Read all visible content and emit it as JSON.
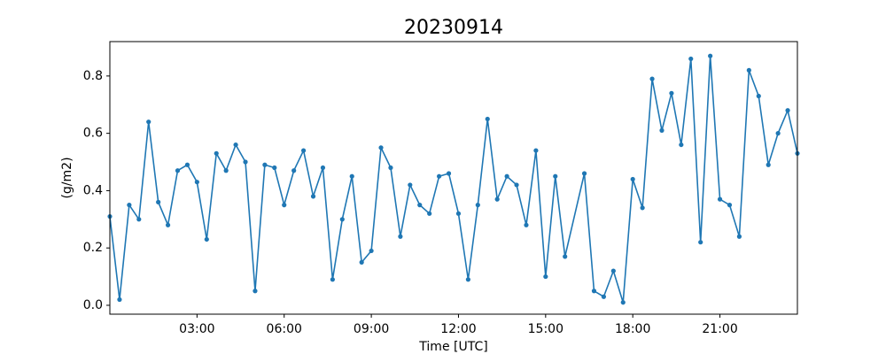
{
  "chart_data": {
    "type": "line",
    "title": "20230914",
    "x_label": "Time [UTC]",
    "y_label": "(g/m2)",
    "x": [
      0,
      20,
      40,
      60,
      80,
      100,
      120,
      140,
      160,
      180,
      200,
      220,
      240,
      260,
      280,
      300,
      320,
      340,
      360,
      380,
      400,
      420,
      440,
      460,
      480,
      500,
      520,
      540,
      560,
      580,
      600,
      620,
      640,
      660,
      680,
      700,
      720,
      740,
      760,
      780,
      800,
      820,
      840,
      860,
      880,
      900,
      920,
      940,
      980,
      1000,
      1020,
      1040,
      1060,
      1080,
      1100,
      1120,
      1140,
      1160,
      1180,
      1200,
      1220,
      1240,
      1260,
      1280,
      1300,
      1320,
      1340,
      1360,
      1380,
      1400,
      1420
    ],
    "series": [
      {
        "color": "#1f77b4",
        "values": [
          0.31,
          0.02,
          0.35,
          0.3,
          0.64,
          0.36,
          0.28,
          0.47,
          0.49,
          0.43,
          0.23,
          0.53,
          0.47,
          0.56,
          0.5,
          0.05,
          0.49,
          0.48,
          0.35,
          0.47,
          0.54,
          0.38,
          0.48,
          0.09,
          0.3,
          0.45,
          0.15,
          0.19,
          0.55,
          0.48,
          0.24,
          0.42,
          0.35,
          0.32,
          0.45,
          0.46,
          0.32,
          0.09,
          0.35,
          0.65,
          0.37,
          0.45,
          0.42,
          0.28,
          0.54,
          0.1,
          0.45,
          0.17,
          0.46,
          0.05,
          0.03,
          0.12,
          0.01,
          0.44,
          0.34,
          0.79,
          0.61,
          0.74,
          0.56,
          0.86,
          0.22,
          0.87,
          0.37,
          0.35,
          0.24,
          0.82,
          0.73,
          0.49,
          0.6,
          0.68,
          0.53
        ]
      }
    ],
    "xlim": [
      0,
      1420
    ],
    "xticks": [
      {
        "value": 180,
        "label": "03:00"
      },
      {
        "value": 360,
        "label": "06:00"
      },
      {
        "value": 540,
        "label": "09:00"
      },
      {
        "value": 720,
        "label": "12:00"
      },
      {
        "value": 900,
        "label": "15:00"
      },
      {
        "value": 1080,
        "label": "18:00"
      },
      {
        "value": 1260,
        "label": "21:00"
      }
    ],
    "ylim": [
      -0.031,
      0.92
    ],
    "yticks": [
      {
        "value": 0,
        "label": "0.0"
      },
      0.2,
      0.4,
      0.6,
      0.8
    ]
  }
}
